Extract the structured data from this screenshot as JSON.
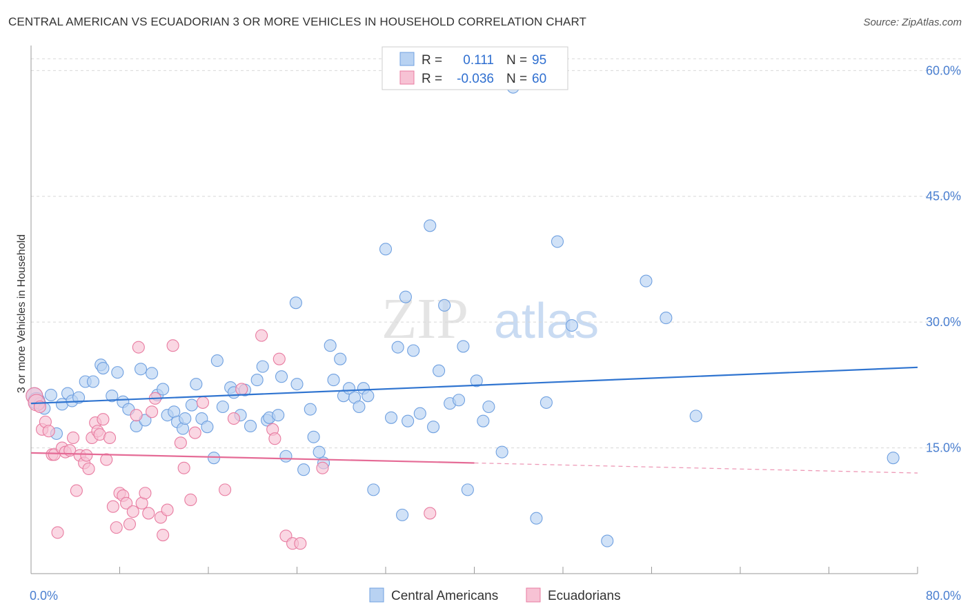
{
  "title": "CENTRAL AMERICAN VS ECUADORIAN 3 OR MORE VEHICLES IN HOUSEHOLD CORRELATION CHART",
  "source": "Source: ZipAtlas.com",
  "watermark": {
    "part1": "ZIP",
    "part2": "atlas"
  },
  "colors": {
    "blue": "#6fa0e0",
    "blue_fill": "#b8d2f2",
    "blue_line": "#2f74d0",
    "pink": "#e87ba0",
    "pink_fill": "#f7c2d4",
    "pink_line": "#e56b96",
    "axis_label": "#4a7fd0",
    "grid": "#d8d8d8"
  },
  "legend": {
    "row1": {
      "r_label": "R =",
      "r_value": "0.111",
      "n_label": "N =",
      "n_value": "95"
    },
    "row2": {
      "r_label": "R =",
      "r_value": "-0.036",
      "n_label": "N =",
      "n_value": "60"
    }
  },
  "chart_data": {
    "type": "scatter",
    "title": "CENTRAL AMERICAN VS ECUADORIAN 3 OR MORE VEHICLES IN HOUSEHOLD CORRELATION CHART",
    "xlabel": "",
    "ylabel": "3 or more Vehicles in Household",
    "xlim": [
      0,
      80
    ],
    "ylim": [
      0,
      62
    ],
    "x_tick_labels": [
      "0.0%",
      "80.0%"
    ],
    "y_ticks": [
      15,
      30,
      45,
      60
    ],
    "y_tick_labels": [
      "15.0%",
      "30.0%",
      "45.0%",
      "60.0%"
    ],
    "grid": true,
    "legend_position": "top-center",
    "series": [
      {
        "name": "Central Americans",
        "color": "#6fa0e0",
        "trend": {
          "x": [
            0,
            80
          ],
          "y": [
            20.3,
            24.6
          ],
          "solid_until": 80
        },
        "points": [
          [
            0.3,
            21.2
          ],
          [
            0.5,
            20.6
          ],
          [
            0.8,
            20.3
          ],
          [
            1.2,
            19.7
          ],
          [
            1.8,
            21.3
          ],
          [
            2.3,
            16.7
          ],
          [
            2.8,
            20.2
          ],
          [
            3.3,
            21.5
          ],
          [
            3.7,
            20.6
          ],
          [
            4.3,
            21.0
          ],
          [
            4.9,
            22.9
          ],
          [
            5.6,
            22.9
          ],
          [
            6.3,
            24.9
          ],
          [
            6.5,
            24.5
          ],
          [
            7.3,
            21.2
          ],
          [
            7.8,
            24.0
          ],
          [
            8.3,
            20.5
          ],
          [
            8.8,
            19.6
          ],
          [
            9.5,
            17.6
          ],
          [
            9.9,
            24.4
          ],
          [
            10.3,
            18.3
          ],
          [
            10.9,
            23.9
          ],
          [
            11.4,
            21.3
          ],
          [
            11.9,
            22.0
          ],
          [
            12.3,
            18.9
          ],
          [
            12.9,
            19.3
          ],
          [
            13.2,
            18.1
          ],
          [
            13.7,
            17.3
          ],
          [
            13.9,
            18.5
          ],
          [
            14.5,
            20.1
          ],
          [
            14.9,
            22.6
          ],
          [
            15.4,
            18.5
          ],
          [
            15.9,
            17.5
          ],
          [
            16.5,
            13.8
          ],
          [
            16.8,
            25.4
          ],
          [
            17.3,
            19.9
          ],
          [
            18.0,
            22.2
          ],
          [
            18.3,
            21.6
          ],
          [
            18.9,
            18.9
          ],
          [
            19.3,
            21.9
          ],
          [
            19.8,
            17.6
          ],
          [
            20.4,
            23.1
          ],
          [
            20.9,
            24.7
          ],
          [
            21.3,
            18.3
          ],
          [
            21.5,
            18.6
          ],
          [
            22.3,
            18.9
          ],
          [
            22.6,
            23.5
          ],
          [
            23.0,
            14.0
          ],
          [
            23.9,
            32.3
          ],
          [
            24.0,
            22.6
          ],
          [
            24.6,
            12.4
          ],
          [
            25.2,
            19.6
          ],
          [
            25.5,
            16.3
          ],
          [
            26.0,
            14.5
          ],
          [
            26.4,
            13.2
          ],
          [
            27.0,
            27.2
          ],
          [
            27.3,
            23.1
          ],
          [
            27.9,
            25.6
          ],
          [
            28.2,
            21.2
          ],
          [
            28.7,
            22.1
          ],
          [
            29.2,
            21.0
          ],
          [
            29.6,
            19.9
          ],
          [
            30.0,
            22.1
          ],
          [
            30.4,
            21.2
          ],
          [
            30.9,
            10.0
          ],
          [
            32.0,
            38.7
          ],
          [
            32.5,
            18.6
          ],
          [
            33.1,
            27.0
          ],
          [
            33.5,
            7.0
          ],
          [
            33.8,
            33.0
          ],
          [
            34.0,
            18.2
          ],
          [
            34.5,
            26.6
          ],
          [
            35.1,
            19.1
          ],
          [
            36.0,
            41.5
          ],
          [
            36.3,
            17.5
          ],
          [
            36.8,
            24.2
          ],
          [
            37.3,
            32.0
          ],
          [
            37.8,
            20.3
          ],
          [
            38.6,
            20.7
          ],
          [
            39.0,
            27.1
          ],
          [
            39.4,
            10.0
          ],
          [
            40.2,
            23.0
          ],
          [
            40.8,
            18.2
          ],
          [
            41.3,
            19.9
          ],
          [
            42.5,
            14.5
          ],
          [
            43.5,
            58.0
          ],
          [
            45.6,
            6.6
          ],
          [
            46.5,
            20.4
          ],
          [
            47.5,
            39.6
          ],
          [
            48.8,
            29.6
          ],
          [
            52.0,
            3.9
          ],
          [
            55.5,
            34.9
          ],
          [
            57.3,
            30.5
          ],
          [
            60.0,
            18.8
          ],
          [
            77.8,
            13.8
          ]
        ]
      },
      {
        "name": "Ecuadorians",
        "color": "#e87ba0",
        "trend": {
          "x": [
            0,
            80
          ],
          "y": [
            14.4,
            12.0
          ],
          "solid_until": 40
        },
        "points": [
          [
            0.3,
            21.2
          ],
          [
            0.5,
            20.4
          ],
          [
            0.8,
            19.9
          ],
          [
            1.0,
            17.2
          ],
          [
            1.3,
            18.1
          ],
          [
            1.6,
            17.0
          ],
          [
            1.9,
            14.2
          ],
          [
            2.1,
            14.2
          ],
          [
            2.4,
            4.9
          ],
          [
            2.8,
            15.0
          ],
          [
            3.1,
            14.5
          ],
          [
            3.5,
            14.7
          ],
          [
            3.8,
            16.2
          ],
          [
            4.1,
            9.9
          ],
          [
            4.4,
            14.1
          ],
          [
            4.8,
            13.2
          ],
          [
            5.0,
            14.1
          ],
          [
            5.2,
            12.5
          ],
          [
            5.5,
            16.2
          ],
          [
            5.8,
            18.0
          ],
          [
            6.0,
            17.0
          ],
          [
            6.2,
            16.6
          ],
          [
            6.5,
            18.4
          ],
          [
            6.8,
            13.6
          ],
          [
            7.1,
            16.2
          ],
          [
            7.4,
            8.0
          ],
          [
            7.7,
            5.5
          ],
          [
            8.0,
            9.6
          ],
          [
            8.3,
            9.3
          ],
          [
            8.6,
            8.4
          ],
          [
            8.9,
            5.9
          ],
          [
            9.2,
            7.4
          ],
          [
            9.5,
            18.9
          ],
          [
            9.7,
            27.0
          ],
          [
            10.0,
            8.4
          ],
          [
            10.3,
            9.6
          ],
          [
            10.6,
            7.2
          ],
          [
            10.9,
            19.3
          ],
          [
            11.2,
            20.9
          ],
          [
            11.7,
            6.7
          ],
          [
            11.9,
            4.6
          ],
          [
            12.3,
            7.6
          ],
          [
            12.8,
            27.2
          ],
          [
            13.5,
            15.6
          ],
          [
            13.8,
            12.6
          ],
          [
            14.4,
            8.8
          ],
          [
            14.8,
            16.8
          ],
          [
            15.5,
            20.4
          ],
          [
            17.5,
            10.0
          ],
          [
            18.3,
            18.5
          ],
          [
            19.0,
            22.0
          ],
          [
            20.8,
            28.4
          ],
          [
            21.8,
            17.2
          ],
          [
            22.0,
            16.1
          ],
          [
            22.4,
            25.6
          ],
          [
            23.0,
            4.5
          ],
          [
            23.6,
            3.6
          ],
          [
            24.3,
            3.6
          ],
          [
            26.3,
            12.6
          ],
          [
            36.0,
            7.2
          ]
        ]
      }
    ],
    "bottom_legend": [
      "Central Americans",
      "Ecuadorians"
    ]
  }
}
